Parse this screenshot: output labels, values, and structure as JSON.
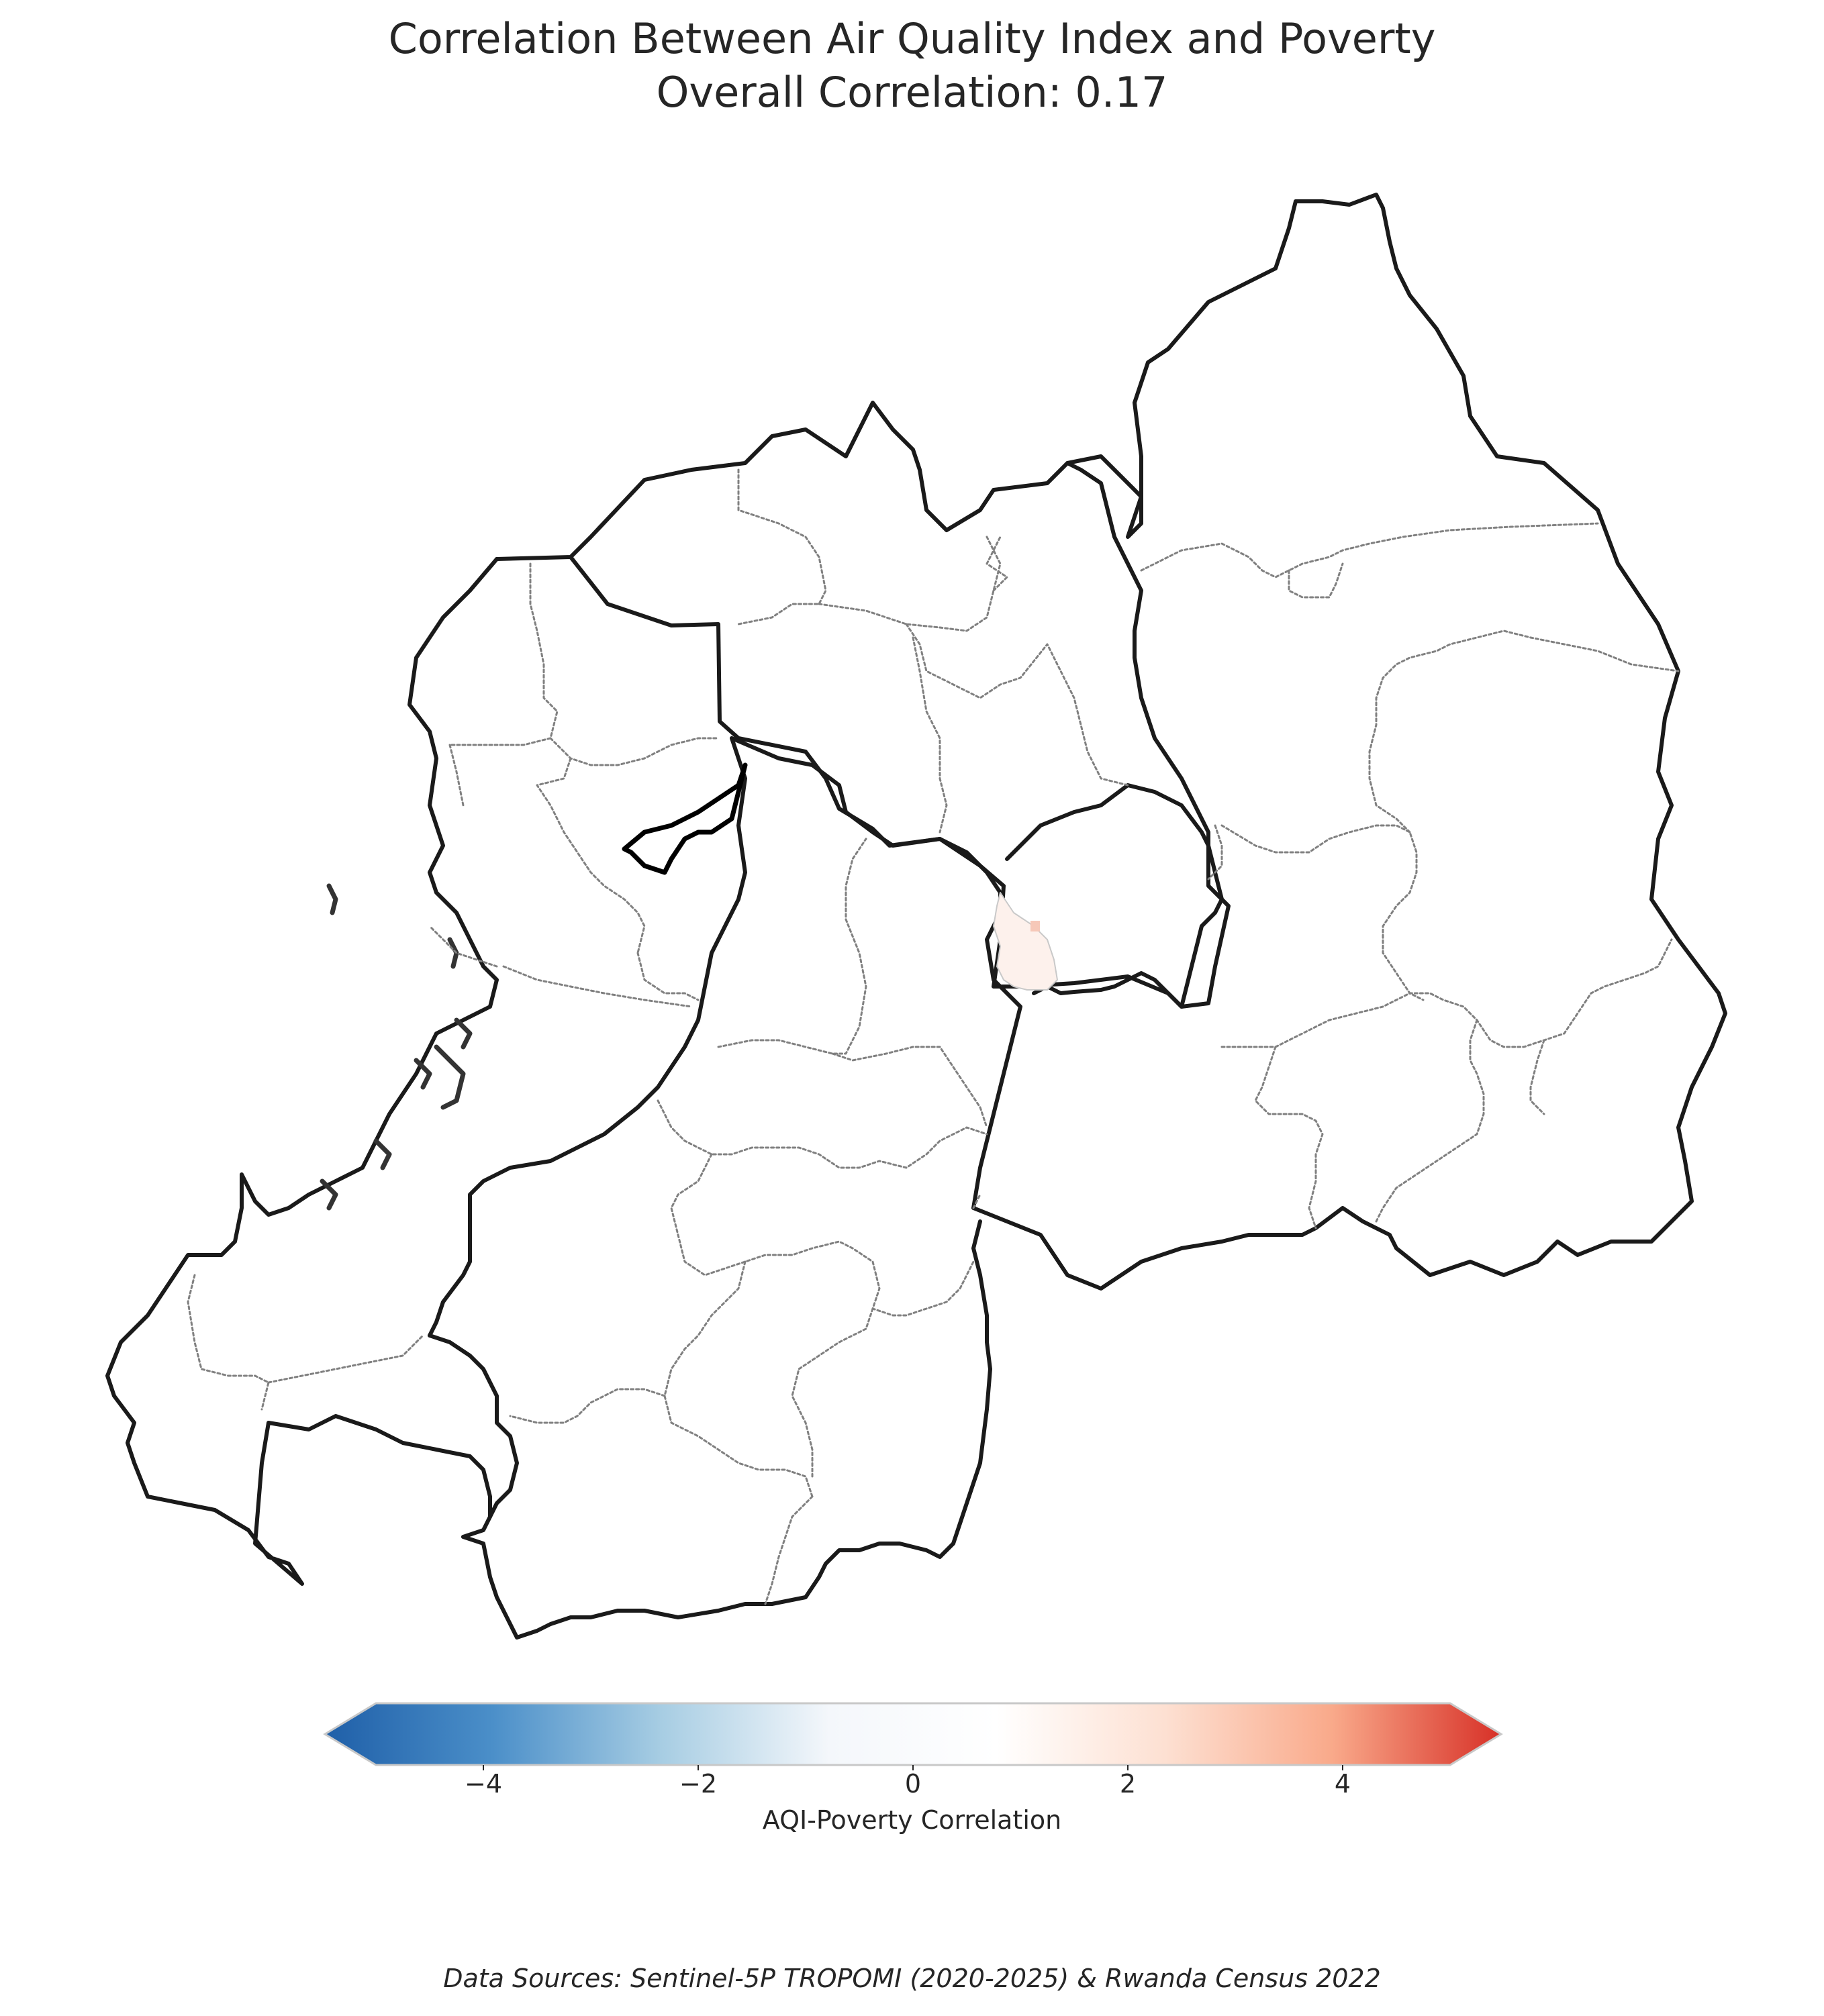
{
  "title": {
    "line1": "Correlation Between Air Quality Index and Poverty",
    "line2": "Overall Correlation: 0.17"
  },
  "colorbar": {
    "label": "AQI-Poverty Correlation",
    "min": -5,
    "max": 5,
    "ticks": [
      {
        "value": -4,
        "label": "−4"
      },
      {
        "value": -2,
        "label": "−2"
      },
      {
        "value": 0,
        "label": "0"
      },
      {
        "value": 2,
        "label": "2"
      },
      {
        "value": 4,
        "label": "4"
      }
    ],
    "colors": [
      "#1f5fa8",
      "#4b8fc9",
      "#a7cde3",
      "#f4f7fb",
      "#ffffff",
      "#fde0d2",
      "#f9a98a",
      "#d73027"
    ]
  },
  "source_note": "Data Sources: Sentinel-5P TROPOMI (2020-2025) & Rwanda Census 2022",
  "map": {
    "province_outline_color": "#1a1a1a",
    "district_outline_color": "#808080",
    "highlight_fill": "#fdf1ec"
  }
}
